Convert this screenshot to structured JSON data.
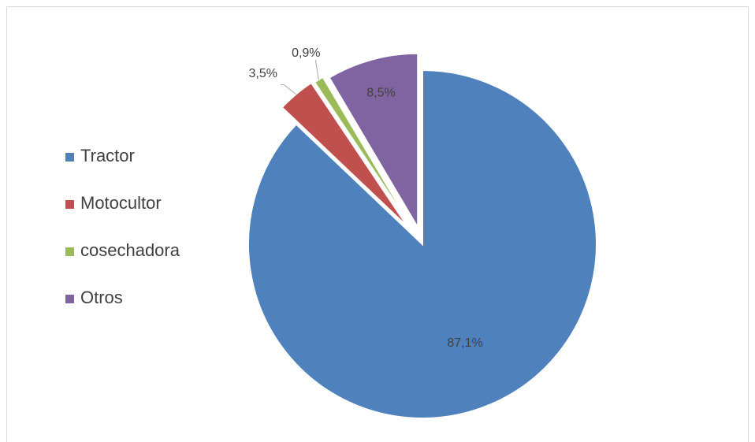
{
  "chart_data": {
    "type": "pie",
    "title": "",
    "categories": [
      "Tractor",
      "Motocultor",
      "cosechadora",
      "Otros"
    ],
    "values": [
      87.1,
      3.5,
      0.9,
      8.5
    ],
    "data_labels": [
      "87,1%",
      "3,5%",
      "0,9%",
      "8,5%"
    ],
    "colors": [
      "#4f81bd",
      "#c0504d",
      "#9bbb59",
      "#8064a2"
    ],
    "legend_position": "left",
    "exploded": true,
    "start_angle_deg": 0,
    "direction": "clockwise"
  }
}
